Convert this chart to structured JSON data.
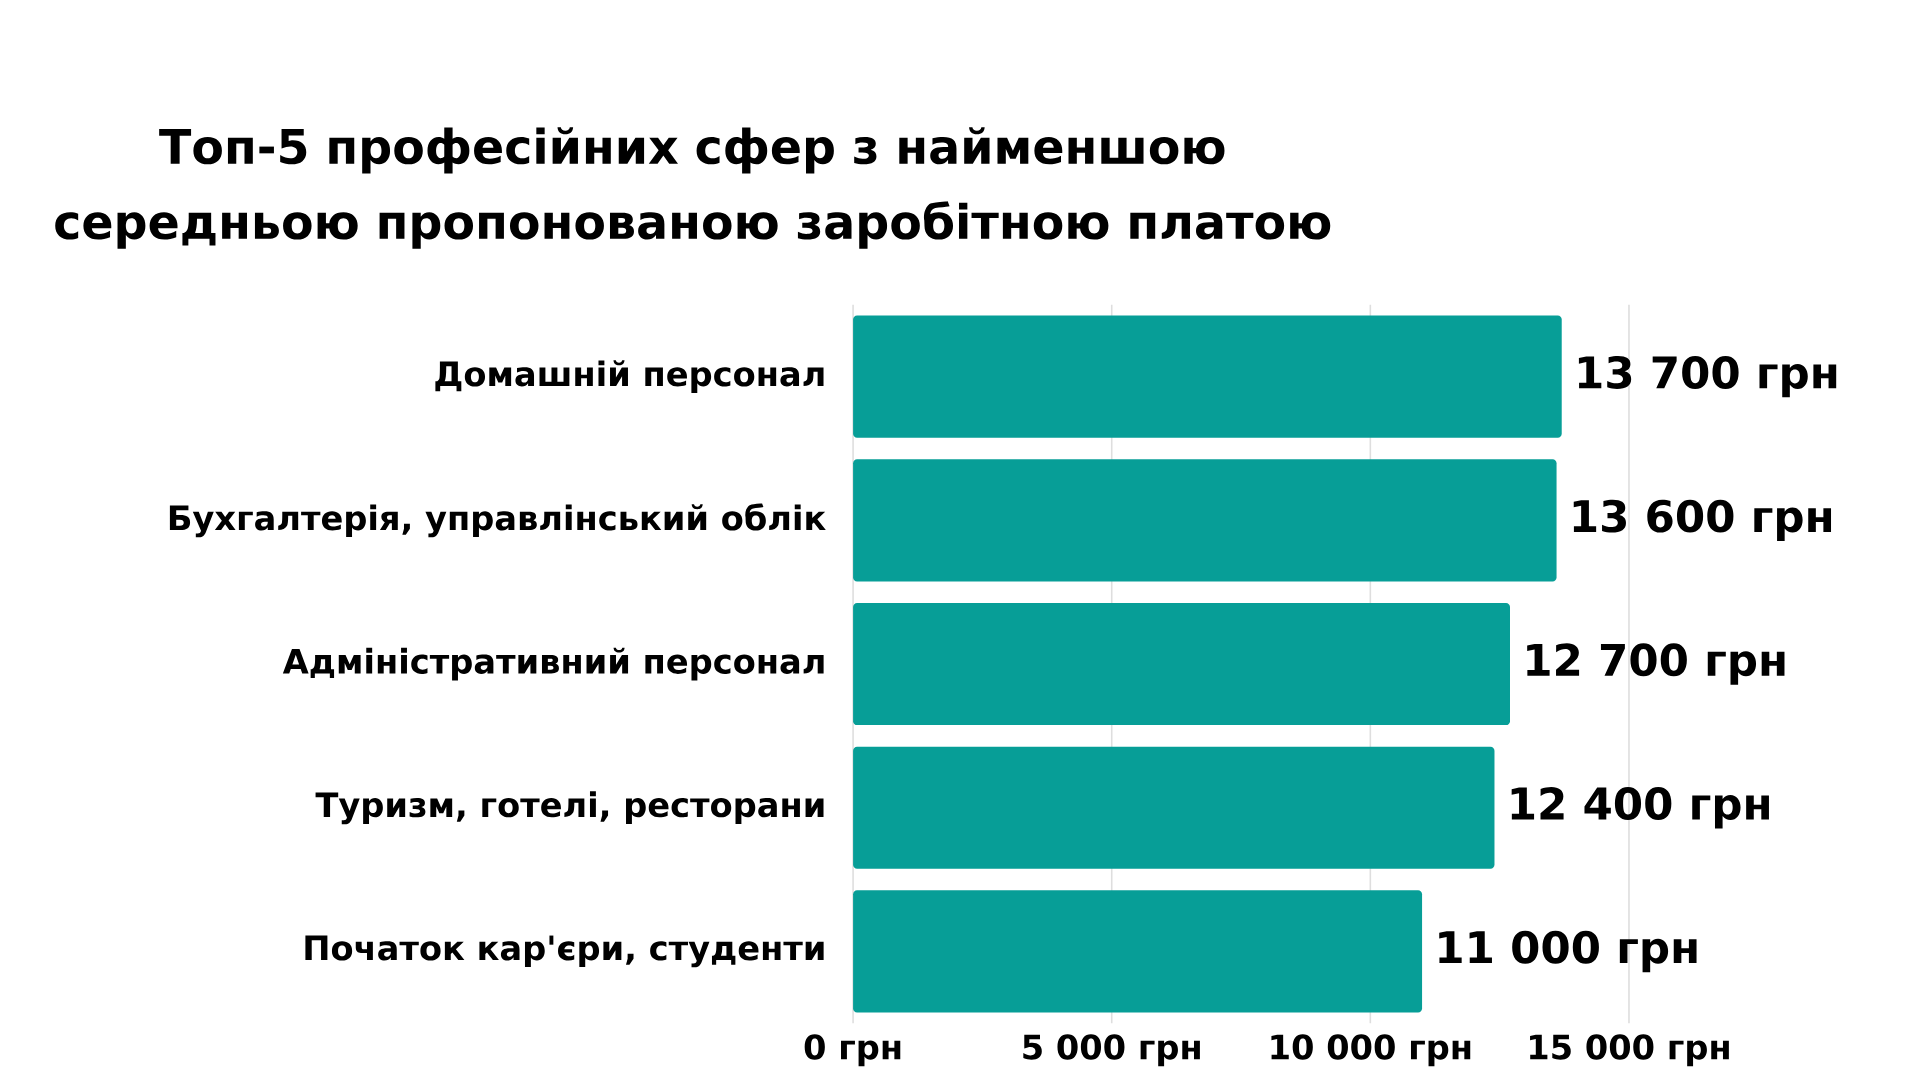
{
  "chart_data": {
    "type": "bar",
    "orientation": "horizontal",
    "title": "Топ-5 професійних сфер з найменшою середньою пропонованою заробітною платою",
    "categories": [
      "Домашній персонал",
      "Бухгалтерія, управлінський облік",
      "Адміністративний персонал",
      "Туризм, готелі, ресторани",
      "Початок кар'єри, студенти"
    ],
    "values": [
      13700,
      13600,
      12700,
      12400,
      11000
    ],
    "value_labels": [
      "13 700 грн",
      "13 600 грн",
      "12 700 грн",
      "12 400 грн",
      "11 000 грн"
    ],
    "color": "#079e97",
    "xlim": [
      0,
      15000
    ],
    "xticks": [
      {
        "value": 0,
        "label": "0 грн"
      },
      {
        "value": 5000,
        "label": "5 000 грн"
      },
      {
        "value": 10000,
        "label": "10 000 грн"
      },
      {
        "value": 15000,
        "label": "15 000 грн"
      }
    ],
    "grid": "x"
  }
}
